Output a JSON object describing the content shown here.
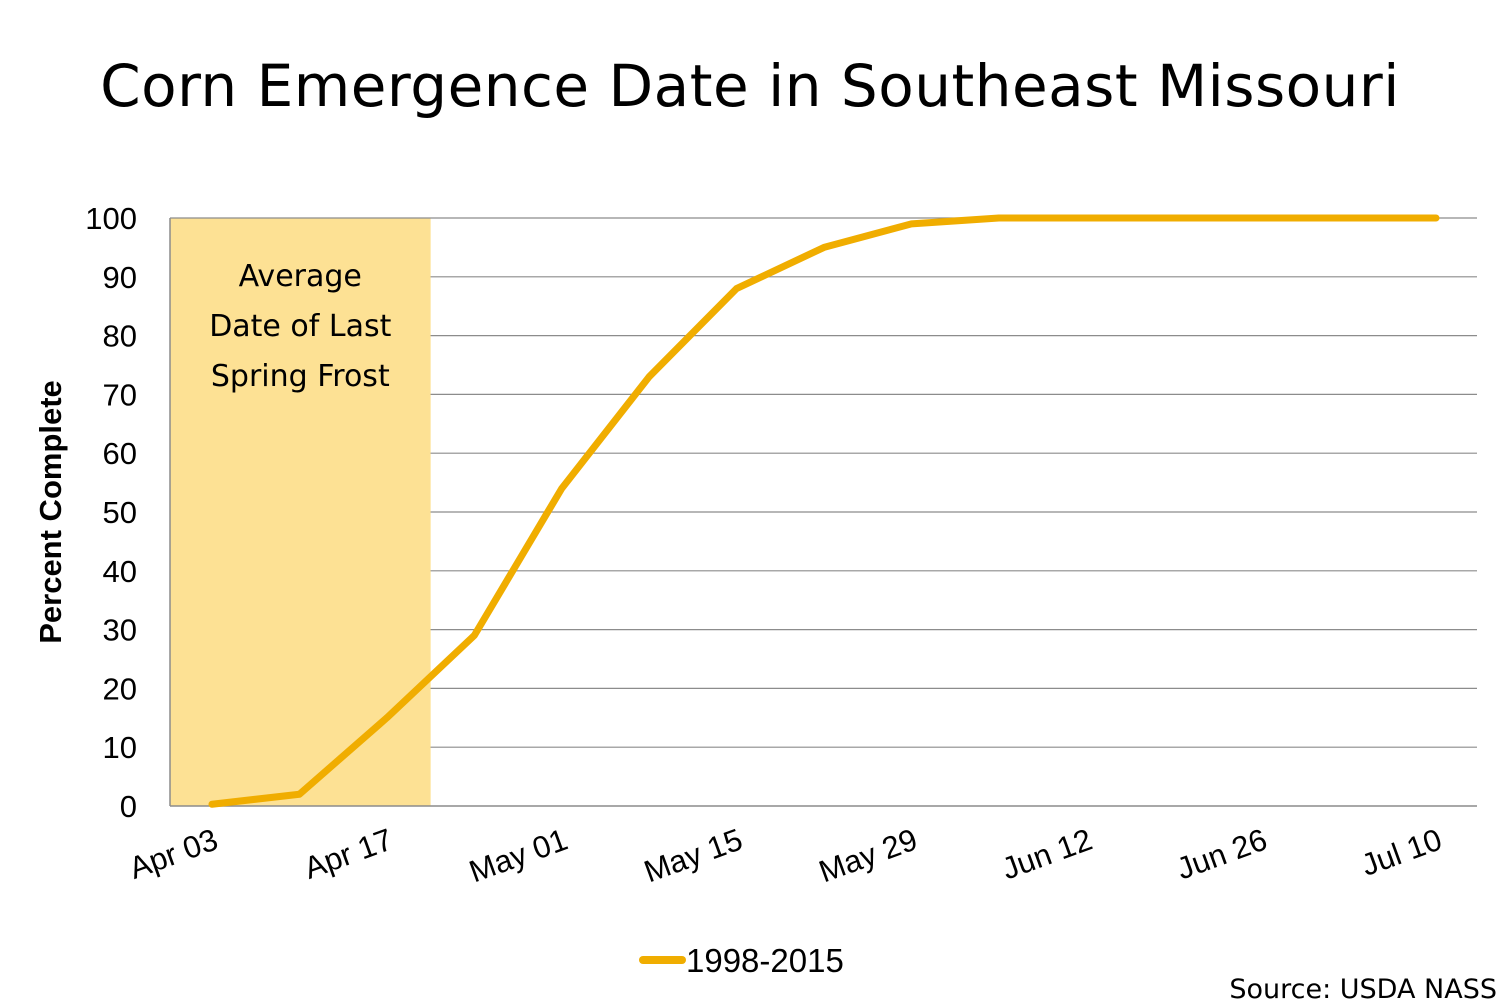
{
  "chart_data": {
    "type": "line",
    "title": "Corn Emergence Date in Southeast Missouri",
    "xlabel": "",
    "ylabel": "Percent Complete",
    "ylim": [
      0,
      100
    ],
    "yticks": [
      0,
      10,
      20,
      30,
      40,
      50,
      60,
      70,
      80,
      90,
      100
    ],
    "grid": true,
    "x_tick_labels": [
      "Apr 03",
      "Apr 17",
      "May 01",
      "May 15",
      "May 29",
      "Jun 12",
      "Jun 26",
      "Jul 10"
    ],
    "x": [
      "Apr 03",
      "Apr 10",
      "Apr 17",
      "Apr 24",
      "May 01",
      "May 08",
      "May 15",
      "May 22",
      "May 29",
      "Jun 05",
      "Jun 12",
      "Jun 19",
      "Jun 26",
      "Jul 03",
      "Jul 10"
    ],
    "series": [
      {
        "name": "1998-2015",
        "color": "#F0AD00",
        "values": [
          0.3,
          2,
          15,
          29,
          54,
          73,
          88,
          95,
          99,
          100,
          100,
          100,
          100,
          100,
          100
        ]
      }
    ],
    "shaded_region": {
      "label_lines": [
        "Average",
        "Date of Last",
        "Spring Frost"
      ],
      "x_start": "Apr 03",
      "x_end_weeks_from_start": 2.5,
      "color": "#FDE194"
    },
    "legend": {
      "position": "bottom-center",
      "entries": [
        "1998-2015"
      ]
    },
    "source": "Source: USDA NASS"
  }
}
